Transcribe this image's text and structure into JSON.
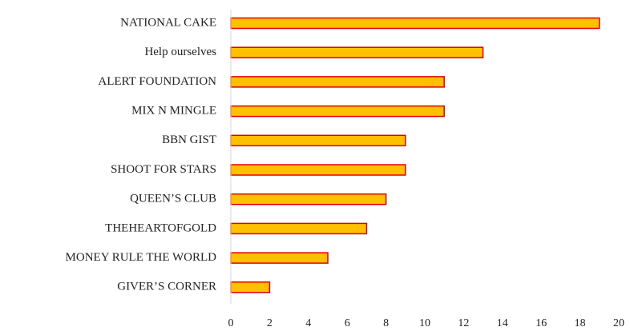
{
  "chart_data": {
    "type": "bar",
    "orientation": "horizontal",
    "categories": [
      "NATIONAL CAKE",
      "Help ourselves",
      "ALERT FOUNDATION",
      "MIX N MINGLE",
      "BBN GIST",
      "SHOOT FOR STARS",
      "QUEEN’S CLUB",
      "THEHEARTOFGOLD",
      "MONEY RULE THE WORLD",
      "GIVER’S CORNER"
    ],
    "values": [
      19,
      13,
      11,
      11,
      9,
      9,
      8,
      7,
      5,
      2
    ],
    "xlim": [
      0,
      20
    ],
    "x_ticks": [
      0,
      2,
      4,
      6,
      8,
      10,
      12,
      14,
      16,
      18,
      20
    ],
    "title": "",
    "xlabel": "",
    "ylabel": "",
    "grid": false,
    "legend": "none",
    "colors": {
      "bar_fill": "#FFC000",
      "bar_stroke": "#E00000",
      "axis": "#D9D9D9"
    }
  }
}
